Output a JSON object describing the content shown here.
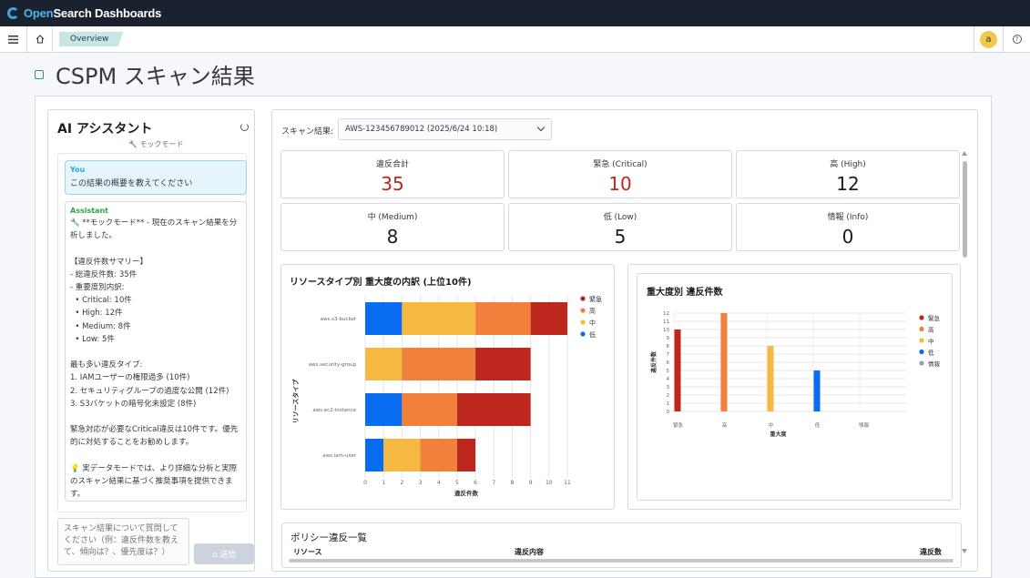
{
  "app": {
    "brand_left": "Open",
    "brand_right": "Search Dashboards",
    "breadcrumb": "Overview",
    "avatar_letter": "a",
    "help_glyph": "?"
  },
  "page": {
    "title": "CSPM スキャン結果"
  },
  "assistant": {
    "title": "AI アシスタント",
    "mode_badge": "🔧 モックモード",
    "user_role": "You",
    "user_message": "この結果の概要を教えてください",
    "assistant_role": "Assistant",
    "assistant_message": "🔧 **モックモード** - 現在のスキャン結果を分析しました。\n\n【違反件数サマリー】\n- 総違反件数: 35件\n- 重要度別内訳:\n  • Critical: 10件\n  • High: 12件\n  • Medium: 8件\n  • Low: 5件\n\n最も多い違反タイプ:\n1. IAMユーザーの権限過多 (10件)\n2. セキュリティグループの過度な公開 (12件)\n3. S3バケットの暗号化未設定 (8件)\n\n緊急対応が必要なCritical違反は10件です。優先的に対処することをお勧めします。\n\n💡 実データモードでは、より詳細な分析と実際のスキャン結果に基づく推奨事項を提供できます。",
    "input_placeholder": "スキャン結果について質問してください（例：違反件数を教えて、傾向は？、優先度は？）",
    "send_label": "⌂ 送信"
  },
  "scan": {
    "label": "スキャン結果:",
    "selected": "AWS-123456789012 (2025/6/24 10:18)"
  },
  "stats": [
    {
      "label": "違反合計",
      "value": "35",
      "red": true
    },
    {
      "label": "緊急 (Critical)",
      "value": "10",
      "red": true
    },
    {
      "label": "高 (High)",
      "value": "12",
      "red": false
    },
    {
      "label": "中 (Medium)",
      "value": "8",
      "red": false
    },
    {
      "label": "低 (Low)",
      "value": "5",
      "red": false
    },
    {
      "label": "情報 (Info)",
      "value": "0",
      "red": false
    }
  ],
  "colors": {
    "critical": "#bd271e",
    "high": "#f0803c",
    "medium": "#f5b840",
    "low": "#006bb8",
    "info": "#98a2b3",
    "blue": "#0a6cf0"
  },
  "chart_data": [
    {
      "type": "bar",
      "orientation": "horizontal",
      "stacked": true,
      "title": "リソースタイプ別 重大度の内訳 (上位10件)",
      "xlabel": "違反件数",
      "ylabel": "リソースタイプ",
      "categories": [
        "aws.s3-bucket",
        "aws.security-group",
        "aws.ec2-instance",
        "aws.iam-user"
      ],
      "series": [
        {
          "name": "低",
          "values": [
            2,
            0,
            2,
            1
          ],
          "color": "#0a6cf0"
        },
        {
          "name": "中",
          "values": [
            4,
            2,
            0,
            2
          ],
          "color": "#f5b840"
        },
        {
          "name": "高",
          "values": [
            3,
            4,
            3,
            2
          ],
          "color": "#f0803c"
        },
        {
          "name": "緊急",
          "values": [
            2,
            3,
            4,
            1
          ],
          "color": "#bd271e"
        }
      ],
      "legend": [
        "緊急",
        "高",
        "中",
        "低"
      ],
      "xlim": [
        0,
        11
      ],
      "xticks": [
        0,
        1,
        2,
        3,
        4,
        5,
        6,
        7,
        8,
        9,
        10,
        11
      ],
      "grid": true,
      "legend_position": "right"
    },
    {
      "type": "bar",
      "title": "重大度別 違反件数",
      "xlabel": "重大度",
      "ylabel": "違反件数",
      "categories": [
        "緊急",
        "高",
        "中",
        "低",
        "情報"
      ],
      "values": [
        10,
        12,
        8,
        5,
        0
      ],
      "colors": [
        "#bd271e",
        "#f0803c",
        "#f5b840",
        "#0a6cf0",
        "#98a2b3"
      ],
      "legend": [
        "緊急",
        "高",
        "中",
        "低",
        "情報"
      ],
      "ylim": [
        0,
        12
      ],
      "yticks": [
        0,
        1,
        2,
        3,
        4,
        5,
        6,
        7,
        8,
        9,
        10,
        11,
        12
      ],
      "grid": true,
      "legend_position": "right"
    }
  ],
  "policy": {
    "title": "ポリシー違反一覧",
    "columns": [
      "リソース",
      "違反内容",
      "違反数"
    ]
  }
}
